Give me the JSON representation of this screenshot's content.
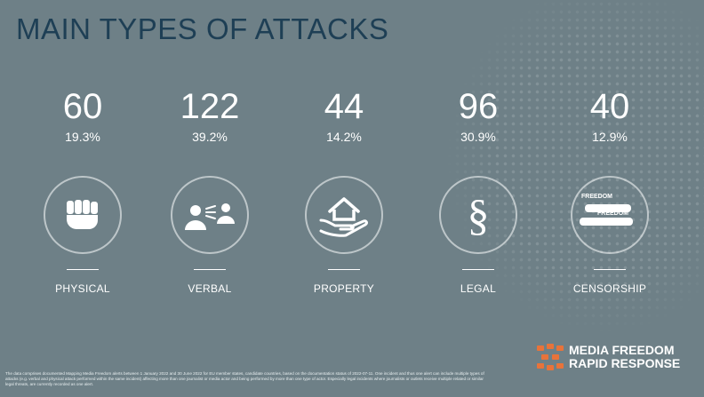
{
  "title": "MAIN TYPES OF ATTACKS",
  "stats": [
    {
      "value": "60",
      "percent": "19.3%",
      "label": "PHYSICAL",
      "icon": "fist-icon"
    },
    {
      "value": "122",
      "percent": "39.2%",
      "label": "VERBAL",
      "icon": "speaking-people-icon"
    },
    {
      "value": "44",
      "percent": "14.2%",
      "label": "PROPERTY",
      "icon": "house-in-hand-icon"
    },
    {
      "value": "96",
      "percent": "30.9%",
      "label": "LEGAL",
      "icon": "section-sign-icon"
    },
    {
      "value": "40",
      "percent": "12.9%",
      "label": "CENSORSHIP",
      "icon": "redacted-text-icon"
    }
  ],
  "censorship_icon_words": [
    "FREEDOM",
    "FREEDOM"
  ],
  "legal_symbol": "§",
  "footnote": "The data comprises documented Mapping Media Freedom alerts between 1 January 2022 and 30 June 2022 for EU member states, candidate countries, based on the documentation status of 2022-07-11. One incident and thus one alert can include multiple types of attacks (e.g. verbal and physical attack performed within the same incident) affecting more than one journalist or media actor and being performed by more than one type of actor. Especially legal incidents where journalists or outlets receive multiple related or similar legal threats, are currently recorded as one alert.",
  "logo": {
    "line1": "MEDIA FREEDOM",
    "line2": "RAPID RESPONSE"
  },
  "colors": {
    "background": "#6e8087",
    "title": "#1e3f55",
    "logo_accent": "#e8733a"
  }
}
